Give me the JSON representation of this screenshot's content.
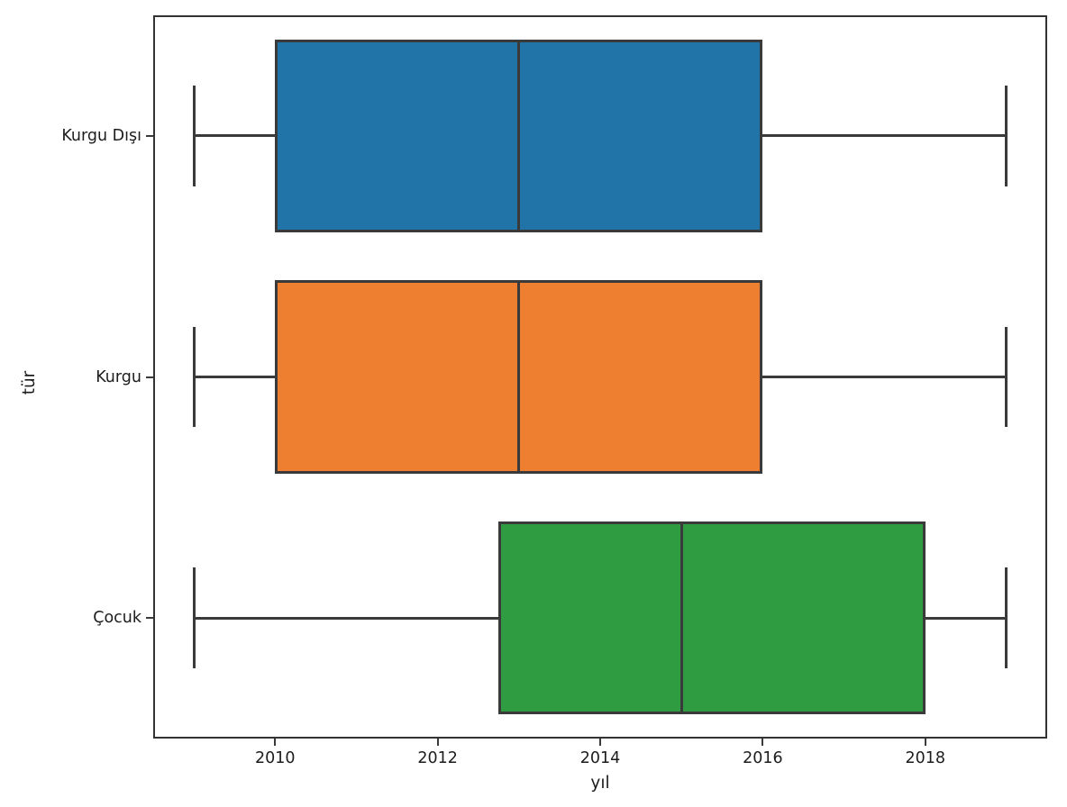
{
  "chart_data": {
    "type": "boxplot",
    "orientation": "horizontal",
    "title": "",
    "xlabel": "yıl",
    "ylabel": "tür",
    "categories": [
      "Kurgu Dışı",
      "Kurgu",
      "Çocuk"
    ],
    "xticks": [
      2010,
      2012,
      2014,
      2016,
      2018
    ],
    "xtick_labels": [
      "2010",
      "2012",
      "2014",
      "2016",
      "2018"
    ],
    "xlim": [
      2008.5,
      2019.5
    ],
    "grid": false,
    "legend_position": "none",
    "edge_color": "#3a3a3a",
    "spine_color": "#333333",
    "background_color": "#ffffff",
    "series": [
      {
        "category": "Kurgu Dışı",
        "color": "#2074a8",
        "whisker_low": 2009,
        "q1": 2010,
        "median": 2013,
        "q3": 2016,
        "whisker_high": 2019
      },
      {
        "category": "Kurgu",
        "color": "#ee7f30",
        "whisker_low": 2009,
        "q1": 2010,
        "median": 2013,
        "q3": 2016,
        "whisker_high": 2019
      },
      {
        "category": "Çocuk",
        "color": "#2f9c41",
        "whisker_low": 2009,
        "q1": 2012.75,
        "median": 2015,
        "q3": 2018,
        "whisker_high": 2019
      }
    ]
  }
}
